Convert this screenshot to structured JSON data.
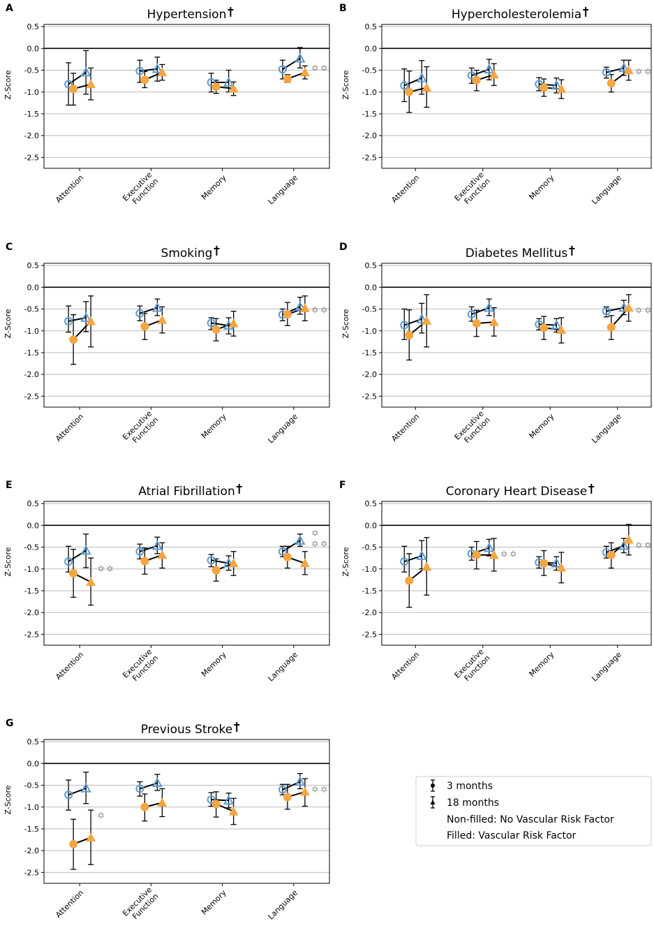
{
  "figure": {
    "y_axis_label": "Z-Score",
    "y_ticks": [
      0.5,
      0.0,
      -0.5,
      -1.0,
      -1.5,
      -2.0,
      -2.5
    ],
    "y_tick_labels": [
      "0.5",
      "0.0",
      "-0.5",
      "-1.0",
      "-1.5",
      "-2.0",
      "-2.5"
    ],
    "ylim": [
      -2.75,
      0.55
    ],
    "colors": {
      "no_risk": "#5b9bd5",
      "risk": "#f5a541",
      "star": "#888888",
      "grid": "#bbbbbb",
      "black": "#000000"
    }
  },
  "legend": {
    "entries": [
      "3 months",
      "18 months",
      "Non-filled: No Vascular Risk Factor",
      "Filled: Vascular Risk Factor"
    ]
  },
  "chart_data": [
    {
      "type": "scatter",
      "letter": "A",
      "title": "Hypertension",
      "categories": [
        "Attention",
        "Executive Function",
        "Memory",
        "Language"
      ],
      "series": [
        {
          "name": "No VRF 3 months",
          "values": [
            -0.82,
            -0.52,
            -0.78,
            -0.48
          ],
          "err": [
            [
              -1.3,
              -0.33
            ],
            [
              -0.78,
              -0.27
            ],
            [
              -1.0,
              -0.57
            ],
            [
              -0.7,
              -0.27
            ]
          ]
        },
        {
          "name": "No VRF 18 months",
          "values": [
            -0.55,
            -0.47,
            -0.78,
            -0.23
          ],
          "err": [
            [
              -1.05,
              -0.05
            ],
            [
              -0.75,
              -0.2
            ],
            [
              -1.0,
              -0.5
            ],
            [
              -0.45,
              0.02
            ]
          ]
        },
        {
          "name": "VRF 3 months",
          "values": [
            -0.93,
            -0.72,
            -0.88,
            -0.7
          ],
          "err": [
            [
              -1.3,
              -0.57
            ],
            [
              -0.9,
              -0.53
            ],
            [
              -1.03,
              -0.73
            ],
            [
              -0.78,
              -0.6
            ]
          ]
        },
        {
          "name": "VRF 18 months",
          "values": [
            -0.82,
            -0.55,
            -0.92,
            -0.55
          ],
          "err": [
            [
              -1.18,
              -0.45
            ],
            [
              -0.73,
              -0.37
            ],
            [
              -1.08,
              -0.77
            ],
            [
              -0.7,
              -0.4
            ]
          ]
        }
      ],
      "stars": [
        0,
        0,
        0,
        2
      ]
    },
    {
      "type": "scatter",
      "letter": "B",
      "title": "Hypercholesterolemia",
      "categories": [
        "Attention",
        "Executive Function",
        "Memory",
        "Language"
      ],
      "series": [
        {
          "name": "No VRF 3 months",
          "values": [
            -0.85,
            -0.62,
            -0.82,
            -0.55
          ],
          "err": [
            [
              -1.22,
              -0.47
            ],
            [
              -0.8,
              -0.45
            ],
            [
              -0.97,
              -0.67
            ],
            [
              -0.68,
              -0.43
            ]
          ]
        },
        {
          "name": "No VRF 18 months",
          "values": [
            -0.68,
            -0.48,
            -0.85,
            -0.45
          ],
          "err": [
            [
              -1.05,
              -0.28
            ],
            [
              -0.72,
              -0.25
            ],
            [
              -1.02,
              -0.68
            ],
            [
              -0.62,
              -0.27
            ]
          ]
        },
        {
          "name": "VRF 3 months",
          "values": [
            -1.0,
            -0.73,
            -0.9,
            -0.8
          ],
          "err": [
            [
              -1.47,
              -0.52
            ],
            [
              -0.97,
              -0.5
            ],
            [
              -1.1,
              -0.7
            ],
            [
              -1.0,
              -0.6
            ]
          ]
        },
        {
          "name": "VRF 18 months",
          "values": [
            -0.9,
            -0.6,
            -0.93,
            -0.5
          ],
          "err": [
            [
              -1.35,
              -0.42
            ],
            [
              -0.85,
              -0.35
            ],
            [
              -1.15,
              -0.72
            ],
            [
              -0.73,
              -0.27
            ]
          ]
        }
      ],
      "stars": [
        0,
        0,
        0,
        2
      ]
    },
    {
      "type": "scatter",
      "letter": "C",
      "title": "Smoking",
      "categories": [
        "Attention",
        "Executive Function",
        "Memory",
        "Language"
      ],
      "series": [
        {
          "name": "No VRF 3 months",
          "values": [
            -0.78,
            -0.6,
            -0.82,
            -0.63
          ],
          "err": [
            [
              -1.03,
              -0.43
            ],
            [
              -0.77,
              -0.43
            ],
            [
              -0.97,
              -0.7
            ],
            [
              -0.77,
              -0.5
            ]
          ]
        },
        {
          "name": "No VRF 18 months",
          "values": [
            -0.7,
            -0.47,
            -0.88,
            -0.45
          ],
          "err": [
            [
              -1.02,
              -0.33
            ],
            [
              -0.65,
              -0.27
            ],
            [
              -1.07,
              -0.7
            ],
            [
              -0.62,
              -0.23
            ]
          ]
        },
        {
          "name": "VRF 3 months",
          "values": [
            -1.2,
            -0.9,
            -0.97,
            -0.62
          ],
          "err": [
            [
              -1.77,
              -0.63
            ],
            [
              -1.2,
              -0.6
            ],
            [
              -1.23,
              -0.72
            ],
            [
              -0.88,
              -0.35
            ]
          ]
        },
        {
          "name": "VRF 18 months",
          "values": [
            -0.78,
            -0.75,
            -0.83,
            -0.48
          ],
          "err": [
            [
              -1.37,
              -0.2
            ],
            [
              -1.05,
              -0.45
            ],
            [
              -1.12,
              -0.55
            ],
            [
              -0.77,
              -0.2
            ]
          ]
        }
      ],
      "stars": [
        0,
        0,
        0,
        2
      ]
    },
    {
      "type": "scatter",
      "letter": "D",
      "title": "Diabetes Mellitus",
      "categories": [
        "Attention",
        "Executive Function",
        "Memory",
        "Language"
      ],
      "series": [
        {
          "name": "No VRF 3 months",
          "values": [
            -0.87,
            -0.62,
            -0.85,
            -0.55
          ],
          "err": [
            [
              -1.2,
              -0.5
            ],
            [
              -0.78,
              -0.45
            ],
            [
              -0.98,
              -0.72
            ],
            [
              -0.68,
              -0.45
            ]
          ]
        },
        {
          "name": "No VRF 18 months",
          "values": [
            -0.73,
            -0.47,
            -0.87,
            -0.47
          ],
          "err": [
            [
              -1.05,
              -0.37
            ],
            [
              -0.65,
              -0.27
            ],
            [
              -1.03,
              -0.72
            ],
            [
              -0.63,
              -0.3
            ]
          ]
        },
        {
          "name": "VRF 3 months",
          "values": [
            -1.1,
            -0.83,
            -0.93,
            -0.92
          ],
          "err": [
            [
              -1.67,
              -0.52
            ],
            [
              -1.13,
              -0.53
            ],
            [
              -1.2,
              -0.67
            ],
            [
              -1.2,
              -0.65
            ]
          ]
        },
        {
          "name": "VRF 18 months",
          "values": [
            -0.77,
            -0.8,
            -0.98,
            -0.47
          ],
          "err": [
            [
              -1.37,
              -0.17
            ],
            [
              -1.12,
              -0.47
            ],
            [
              -1.28,
              -0.7
            ],
            [
              -0.78,
              -0.17
            ]
          ]
        }
      ],
      "stars": [
        0,
        0,
        0,
        2
      ]
    },
    {
      "type": "scatter",
      "letter": "E",
      "title": "Atrial Fibrillation",
      "categories": [
        "Attention",
        "Executive Function",
        "Memory",
        "Language"
      ],
      "series": [
        {
          "name": "No VRF 3 months",
          "values": [
            -0.83,
            -0.6,
            -0.8,
            -0.6
          ],
          "err": [
            [
              -1.07,
              -0.48
            ],
            [
              -0.77,
              -0.43
            ],
            [
              -0.95,
              -0.67
            ],
            [
              -0.72,
              -0.48
            ]
          ]
        },
        {
          "name": "No VRF 18 months",
          "values": [
            -0.58,
            -0.47,
            -0.87,
            -0.35
          ],
          "err": [
            [
              -0.97,
              -0.2
            ],
            [
              -0.65,
              -0.27
            ],
            [
              -1.03,
              -0.7
            ],
            [
              -0.48,
              -0.2
            ]
          ]
        },
        {
          "name": "VRF 3 months",
          "values": [
            -1.1,
            -0.82,
            -1.03,
            -0.73
          ],
          "err": [
            [
              -1.65,
              -0.55
            ],
            [
              -1.12,
              -0.52
            ],
            [
              -1.28,
              -0.77
            ],
            [
              -0.98,
              -0.48
            ]
          ]
        },
        {
          "name": "VRF 18 months",
          "values": [
            -1.3,
            -0.68,
            -0.87,
            -0.87
          ],
          "err": [
            [
              -1.83,
              -0.75
            ],
            [
              -0.98,
              -0.4
            ],
            [
              -1.15,
              -0.6
            ],
            [
              -1.13,
              -0.6
            ]
          ]
        }
      ],
      "stars": [
        2,
        0,
        0,
        3
      ]
    },
    {
      "type": "scatter",
      "letter": "F",
      "title": "Coronary Heart Disease",
      "categories": [
        "Attention",
        "Executive Function",
        "Memory",
        "Language"
      ],
      "series": [
        {
          "name": "No VRF 3 months",
          "values": [
            -0.83,
            -0.65,
            -0.85,
            -0.62
          ],
          "err": [
            [
              -1.07,
              -0.48
            ],
            [
              -0.8,
              -0.5
            ],
            [
              -0.98,
              -0.72
            ],
            [
              -0.75,
              -0.48
            ]
          ]
        },
        {
          "name": "No VRF 18 months",
          "values": [
            -0.7,
            -0.52,
            -0.87,
            -0.47
          ],
          "err": [
            [
              -1.0,
              -0.35
            ],
            [
              -0.7,
              -0.32
            ],
            [
              -1.03,
              -0.72
            ],
            [
              -0.63,
              -0.3
            ]
          ]
        },
        {
          "name": "VRF 3 months",
          "values": [
            -1.27,
            -0.68,
            -0.87,
            -0.68
          ],
          "err": [
            [
              -1.88,
              -0.65
            ],
            [
              -1.0,
              -0.37
            ],
            [
              -1.15,
              -0.58
            ],
            [
              -0.98,
              -0.4
            ]
          ]
        },
        {
          "name": "VRF 18 months",
          "values": [
            -0.95,
            -0.68,
            -0.97,
            -0.33
          ],
          "err": [
            [
              -1.6,
              -0.28
            ],
            [
              -1.05,
              -0.3
            ],
            [
              -1.32,
              -0.62
            ],
            [
              -0.68,
              0.02
            ]
          ]
        }
      ],
      "stars": [
        0,
        2,
        0,
        2
      ]
    },
    {
      "type": "scatter",
      "letter": "G",
      "title": "Previous Stroke",
      "categories": [
        "Attention",
        "Executive Function",
        "Memory",
        "Language"
      ],
      "series": [
        {
          "name": "No VRF 3 months",
          "values": [
            -0.72,
            -0.58,
            -0.83,
            -0.6
          ],
          "err": [
            [
              -1.07,
              -0.38
            ],
            [
              -0.75,
              -0.42
            ],
            [
              -0.98,
              -0.67
            ],
            [
              -0.72,
              -0.48
            ]
          ]
        },
        {
          "name": "No VRF 18 months",
          "values": [
            -0.57,
            -0.45,
            -0.85,
            -0.42
          ],
          "err": [
            [
              -0.92,
              -0.2
            ],
            [
              -0.62,
              -0.25
            ],
            [
              -1.02,
              -0.68
            ],
            [
              -0.58,
              -0.23
            ]
          ]
        },
        {
          "name": "VRF 3 months",
          "values": [
            -1.85,
            -1.0,
            -0.93,
            -0.77
          ],
          "err": [
            [
              -2.43,
              -1.28
            ],
            [
              -1.32,
              -0.7
            ],
            [
              -1.23,
              -0.65
            ],
            [
              -1.05,
              -0.48
            ]
          ]
        },
        {
          "name": "VRF 18 months",
          "values": [
            -1.7,
            -0.9,
            -1.1,
            -0.65
          ],
          "err": [
            [
              -2.32,
              -1.07
            ],
            [
              -1.22,
              -0.58
            ],
            [
              -1.4,
              -0.8
            ],
            [
              -0.98,
              -0.35
            ]
          ]
        }
      ],
      "stars": [
        1,
        0,
        0,
        2
      ]
    }
  ]
}
